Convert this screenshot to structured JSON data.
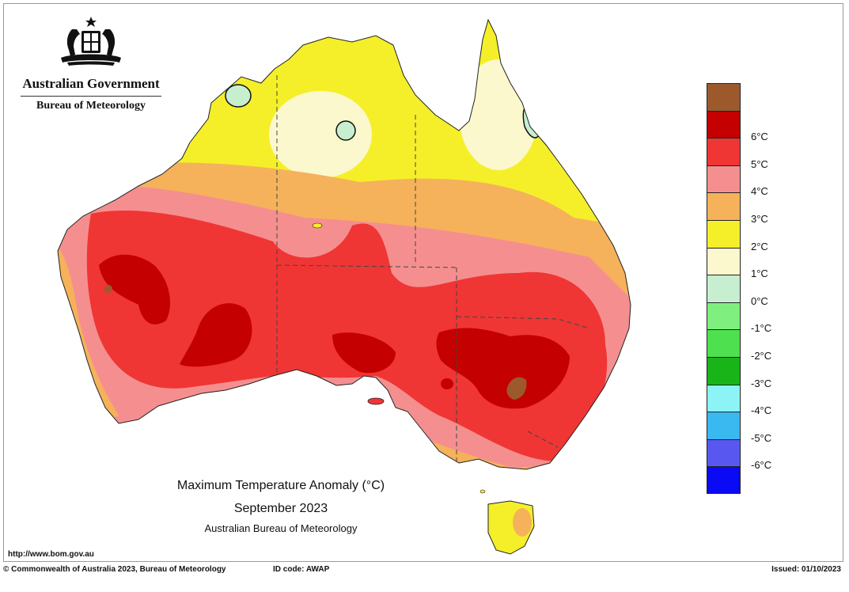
{
  "logo": {
    "org_line1": "Australian Government",
    "org_line2": "Bureau of Meteorology"
  },
  "legend": {
    "items": [
      {
        "label": "",
        "color": "#9c5a2c"
      },
      {
        "label": "6°C",
        "color": "#c40000"
      },
      {
        "label": "5°C",
        "color": "#f03535"
      },
      {
        "label": "4°C",
        "color": "#f58f8f"
      },
      {
        "label": "3°C",
        "color": "#f5b25a"
      },
      {
        "label": "2°C",
        "color": "#f5ef2a"
      },
      {
        "label": "1°C",
        "color": "#fbf8cd"
      },
      {
        "label": "0°C",
        "color": "#c7efcf"
      },
      {
        "label": "-1°C",
        "color": "#7ff07f"
      },
      {
        "label": "-2°C",
        "color": "#4fe04f"
      },
      {
        "label": "-3°C",
        "color": "#18b418"
      },
      {
        "label": "-4°C",
        "color": "#8cf4f6"
      },
      {
        "label": "-5°C",
        "color": "#3ab8f0"
      },
      {
        "label": "-6°C",
        "color": "#5858f0"
      },
      {
        "label": "",
        "color": "#0a0af5"
      }
    ]
  },
  "title": {
    "line1": "Maximum Temperature Anomaly (°C)",
    "line2": "September 2023",
    "line3": "Australian Bureau of Meteorology"
  },
  "url": "http://www.bom.gov.au",
  "footer": {
    "copyright": "© Commonwealth of Australia 2023, Bureau of Meteorology",
    "id_code": "ID code: AWAP",
    "issued": "Issued: 01/10/2023"
  }
}
